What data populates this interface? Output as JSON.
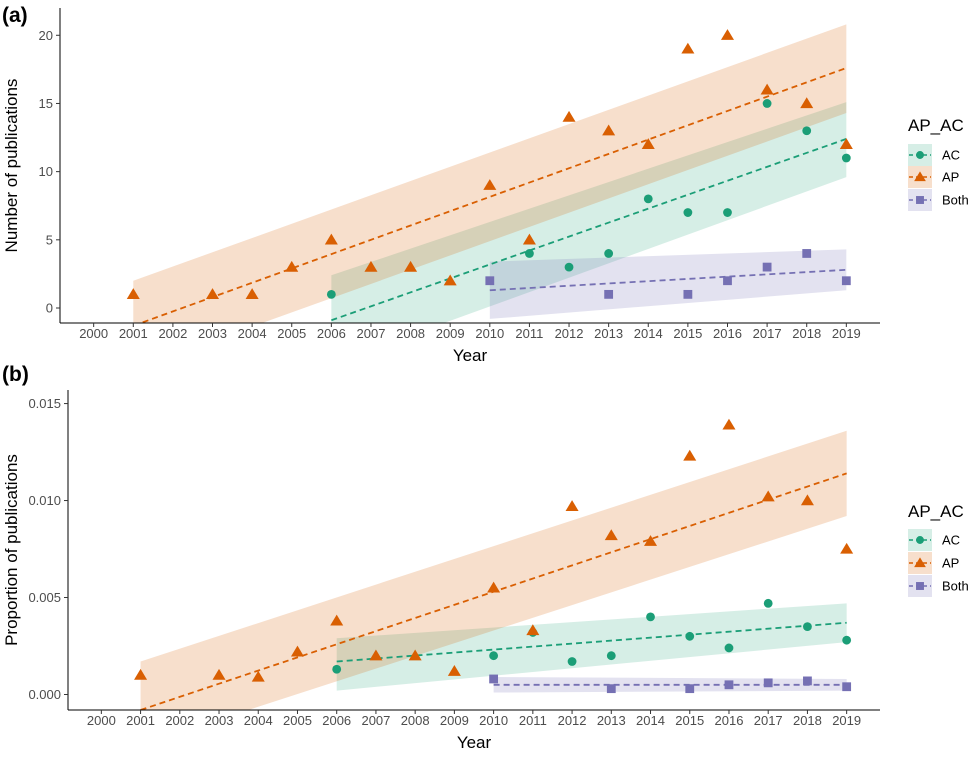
{
  "figure": {
    "colors": {
      "AC": "#1b9e77",
      "AP": "#d95f02",
      "Both": "#7570b3"
    }
  },
  "chart_data": [
    {
      "type": "scatter",
      "panel_label": "(a)",
      "xlabel": "Year",
      "ylabel": "Number of publications",
      "xlim": [
        1999.15,
        2019.85
      ],
      "ylim": [
        -1.1,
        22.0
      ],
      "x_ticks": [
        2000,
        2001,
        2002,
        2003,
        2004,
        2005,
        2006,
        2007,
        2008,
        2009,
        2010,
        2011,
        2012,
        2013,
        2014,
        2015,
        2016,
        2017,
        2018,
        2019
      ],
      "y_ticks": [
        0,
        5,
        10,
        15,
        20
      ],
      "y_tick_labels": [
        "0",
        "5",
        "10",
        "15",
        "20"
      ],
      "grid": false,
      "legend": {
        "title": "AP_AC",
        "position": "right",
        "items": [
          {
            "label": "AC",
            "series": "AC",
            "marker": "circle"
          },
          {
            "label": "AP",
            "series": "AP",
            "marker": "triangle"
          },
          {
            "label": "Both",
            "series": "Both",
            "marker": "square"
          }
        ]
      },
      "series": [
        {
          "name": "AC",
          "marker": "circle",
          "x": [
            2006,
            2011,
            2012,
            2013,
            2014,
            2015,
            2016,
            2017,
            2018,
            2019
          ],
          "y": [
            1,
            4,
            3,
            4,
            8,
            7,
            7,
            15,
            13,
            11
          ],
          "fit": {
            "x": [
              2006,
              2019
            ],
            "y": [
              -0.9,
              12.4
            ],
            "lower": [
              -4.1,
              9.6
            ],
            "upper": [
              2.4,
              15.1
            ]
          }
        },
        {
          "name": "AP",
          "marker": "triangle",
          "x": [
            2001,
            2003,
            2004,
            2005,
            2006,
            2007,
            2008,
            2009,
            2010,
            2011,
            2012,
            2013,
            2014,
            2015,
            2016,
            2017,
            2018,
            2019
          ],
          "y": [
            1,
            1,
            1,
            3,
            5,
            3,
            3,
            2,
            9,
            5,
            14,
            13,
            12,
            19,
            20,
            16,
            15,
            12
          ],
          "fit": {
            "x": [
              2001,
              2019
            ],
            "y": [
              -1.3,
              17.6
            ],
            "lower": [
              -4.5,
              14.3
            ],
            "upper": [
              2.0,
              20.8
            ]
          }
        },
        {
          "name": "Both",
          "marker": "square",
          "x": [
            2010,
            2013,
            2015,
            2016,
            2017,
            2018,
            2019
          ],
          "y": [
            2,
            1,
            1,
            2,
            3,
            4,
            2
          ],
          "fit": {
            "x": [
              2010,
              2019
            ],
            "y": [
              1.3,
              2.8
            ],
            "lower": [
              -0.8,
              1.3
            ],
            "upper": [
              3.4,
              4.3
            ]
          }
        }
      ]
    },
    {
      "type": "scatter",
      "panel_label": "(b)",
      "xlabel": "Year",
      "ylabel": "Proportion of publications",
      "xlim": [
        1999.15,
        2019.85
      ],
      "ylim": [
        -0.0008,
        0.0157
      ],
      "x_ticks": [
        2000,
        2001,
        2002,
        2003,
        2004,
        2005,
        2006,
        2007,
        2008,
        2009,
        2010,
        2011,
        2012,
        2013,
        2014,
        2015,
        2016,
        2017,
        2018,
        2019
      ],
      "y_ticks": [
        0,
        0.005,
        0.01,
        0.015
      ],
      "y_tick_labels": [
        "0.000",
        "0.005",
        "0.010",
        "0.015"
      ],
      "grid": false,
      "legend": {
        "title": "AP_AC",
        "position": "right",
        "items": [
          {
            "label": "AC",
            "series": "AC",
            "marker": "circle"
          },
          {
            "label": "AP",
            "series": "AP",
            "marker": "triangle"
          },
          {
            "label": "Both",
            "series": "Both",
            "marker": "square"
          }
        ]
      },
      "series": [
        {
          "name": "AC",
          "marker": "circle",
          "x": [
            2006,
            2010,
            2011,
            2012,
            2013,
            2014,
            2015,
            2016,
            2017,
            2018,
            2019
          ],
          "y": [
            0.0013,
            0.002,
            0.0032,
            0.0017,
            0.002,
            0.004,
            0.003,
            0.0024,
            0.0047,
            0.0035,
            0.0028
          ],
          "fit": {
            "x": [
              2006,
              2019
            ],
            "y": [
              0.0017,
              0.0037
            ],
            "lower": [
              0.0002,
              0.0027
            ],
            "upper": [
              0.0029,
              0.0047
            ]
          }
        },
        {
          "name": "AP",
          "marker": "triangle",
          "x": [
            2001,
            2003,
            2004,
            2005,
            2006,
            2007,
            2008,
            2009,
            2010,
            2011,
            2012,
            2013,
            2014,
            2015,
            2016,
            2017,
            2018,
            2019
          ],
          "y": [
            0.001,
            0.001,
            0.0009,
            0.0022,
            0.0038,
            0.002,
            0.002,
            0.0012,
            0.0055,
            0.0033,
            0.0097,
            0.0082,
            0.0079,
            0.0123,
            0.0139,
            0.0102,
            0.01,
            0.0075
          ],
          "fit": {
            "x": [
              2001,
              2019
            ],
            "y": [
              -0.0008,
              0.0114
            ],
            "lower": [
              -0.0026,
              0.0092
            ],
            "upper": [
              0.0017,
              0.0136
            ]
          }
        },
        {
          "name": "Both",
          "marker": "square",
          "x": [
            2010,
            2013,
            2015,
            2016,
            2017,
            2018,
            2019
          ],
          "y": [
            0.0008,
            0.0003,
            0.0003,
            0.0005,
            0.0006,
            0.0007,
            0.0004
          ],
          "fit": {
            "x": [
              2010,
              2019
            ],
            "y": [
              0.0005,
              0.0005
            ],
            "lower": [
              0.0001,
              0.0002
            ],
            "upper": [
              0.0009,
              0.0008
            ]
          }
        }
      ]
    }
  ]
}
